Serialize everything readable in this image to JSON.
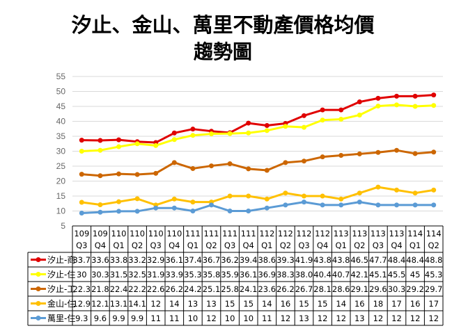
{
  "chart_data": {
    "type": "line",
    "title": [
      "汐止、金山、萬里不動產價格均價",
      "趨勢圖"
    ],
    "ylim": [
      5,
      55
    ],
    "yticks": [
      5,
      10,
      15,
      20,
      25,
      30,
      35,
      40,
      45,
      50,
      55
    ],
    "grid": true,
    "legend": "table-left",
    "categories": [
      [
        "109",
        "Q3"
      ],
      [
        "109",
        "Q4"
      ],
      [
        "110",
        "Q1"
      ],
      [
        "110",
        "Q2"
      ],
      [
        "110",
        "Q3"
      ],
      [
        "110",
        "Q4"
      ],
      [
        "111",
        "Q1"
      ],
      [
        "111",
        "Q2"
      ],
      [
        "111",
        "Q3"
      ],
      [
        "111",
        "Q4"
      ],
      [
        "112",
        "Q1"
      ],
      [
        "112",
        "Q2"
      ],
      [
        "112",
        "Q3"
      ],
      [
        "112",
        "Q4"
      ],
      [
        "113",
        "Q1"
      ],
      [
        "113",
        "Q2"
      ],
      [
        "113",
        "Q3"
      ],
      [
        "113",
        "Q4"
      ],
      [
        "114",
        "Q1"
      ],
      [
        "114",
        "Q2"
      ]
    ],
    "series": [
      {
        "name": "汐止-商",
        "color": "#e00000",
        "values": [
          "33.7",
          "33.6",
          "33.8",
          "33.2",
          "32.9",
          "36.1",
          "37.4",
          "36.7",
          "36.2",
          "39.4",
          "38.6",
          "39.3",
          "41.9",
          "43.8",
          "43.8",
          "46.5",
          "47.7",
          "48.4",
          "48.4",
          "48.8"
        ]
      },
      {
        "name": "汐止-住",
        "color": "#ffff00",
        "values": [
          "30",
          "30.3",
          "31.5",
          "32.5",
          "31.9",
          "33.9",
          "35.3",
          "35.8",
          "35.9",
          "36.1",
          "36.9",
          "38.3",
          "38.0",
          "40.4",
          "40.7",
          "42.1",
          "45.1",
          "45.5",
          "45",
          "45.3"
        ]
      },
      {
        "name": "汐止-工",
        "color": "#cc6600",
        "values": [
          "22.3",
          "21.8",
          "22.4",
          "22.2",
          "22.6",
          "26.2",
          "24.2",
          "25.1",
          "25.8",
          "24.1",
          "23.6",
          "26.2",
          "26.7",
          "28.1",
          "28.6",
          "29.1",
          "29.6",
          "30.3",
          "29.2",
          "29.7"
        ]
      },
      {
        "name": "金山-住",
        "color": "#ffc000",
        "values": [
          "12.9",
          "12.1",
          "13.1",
          "14.1",
          "12",
          "14",
          "13",
          "13",
          "15",
          "15",
          "14",
          "16",
          "15",
          "15",
          "14",
          "16",
          "18",
          "17",
          "16",
          "17"
        ]
      },
      {
        "name": "萬里-住",
        "color": "#5b9bd5",
        "values": [
          "9.3",
          "9.6",
          "9.9",
          "9.9",
          "11",
          "11",
          "10",
          "12",
          "10",
          "10",
          "11",
          "12",
          "13",
          "12",
          "12",
          "13",
          "12",
          "12",
          "12",
          "12"
        ]
      }
    ]
  }
}
